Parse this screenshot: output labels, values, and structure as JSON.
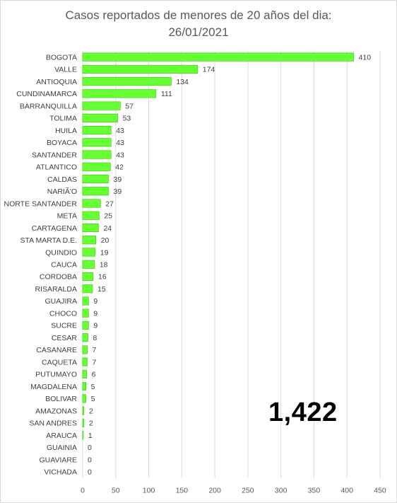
{
  "chart_data": {
    "type": "bar",
    "orientation": "horizontal",
    "title": "Casos reportados de menores de 20 años del dia:",
    "subtitle": "26/01/2021",
    "total_annotation": "1,422",
    "categories": [
      "BOGOTA",
      "VALLE",
      "ANTIOQUIA",
      "CUNDINAMARCA",
      "BARRANQUILLA",
      "TOLIMA",
      "HUILA",
      "BOYACA",
      "SANTANDER",
      "ATLANTICO",
      "CALDAS",
      "NARIÃ'O",
      "NORTE SANTANDER",
      "META",
      "CARTAGENA",
      "STA MARTA D.E.",
      "QUINDIO",
      "CAUCA",
      "CORDOBA",
      "RISARALDA",
      "GUAJIRA",
      "CHOCO",
      "SUCRE",
      "CESAR",
      "CASANARE",
      "CAQUETA",
      "PUTUMAYO",
      "MAGDALENA",
      "BOLIVAR",
      "AMAZONAS",
      "SAN ANDRES",
      "ARAUCA",
      "GUAINIA",
      "GUAVIARE",
      "VICHADA"
    ],
    "values": [
      410,
      174,
      134,
      111,
      57,
      53,
      43,
      43,
      43,
      42,
      39,
      39,
      27,
      25,
      24,
      20,
      19,
      18,
      16,
      15,
      9,
      9,
      9,
      8,
      7,
      7,
      6,
      5,
      5,
      2,
      2,
      1,
      0,
      0,
      0
    ],
    "xlim": [
      0,
      450
    ],
    "xticks": [
      0,
      50,
      100,
      150,
      200,
      250,
      300,
      350,
      400,
      450
    ],
    "xlabel": "",
    "ylabel": "",
    "grid": true,
    "legend": "none",
    "bar_color": "#66ff33",
    "bar_outline_color": "#33cc00",
    "grid_color": "#d9d9d9"
  }
}
